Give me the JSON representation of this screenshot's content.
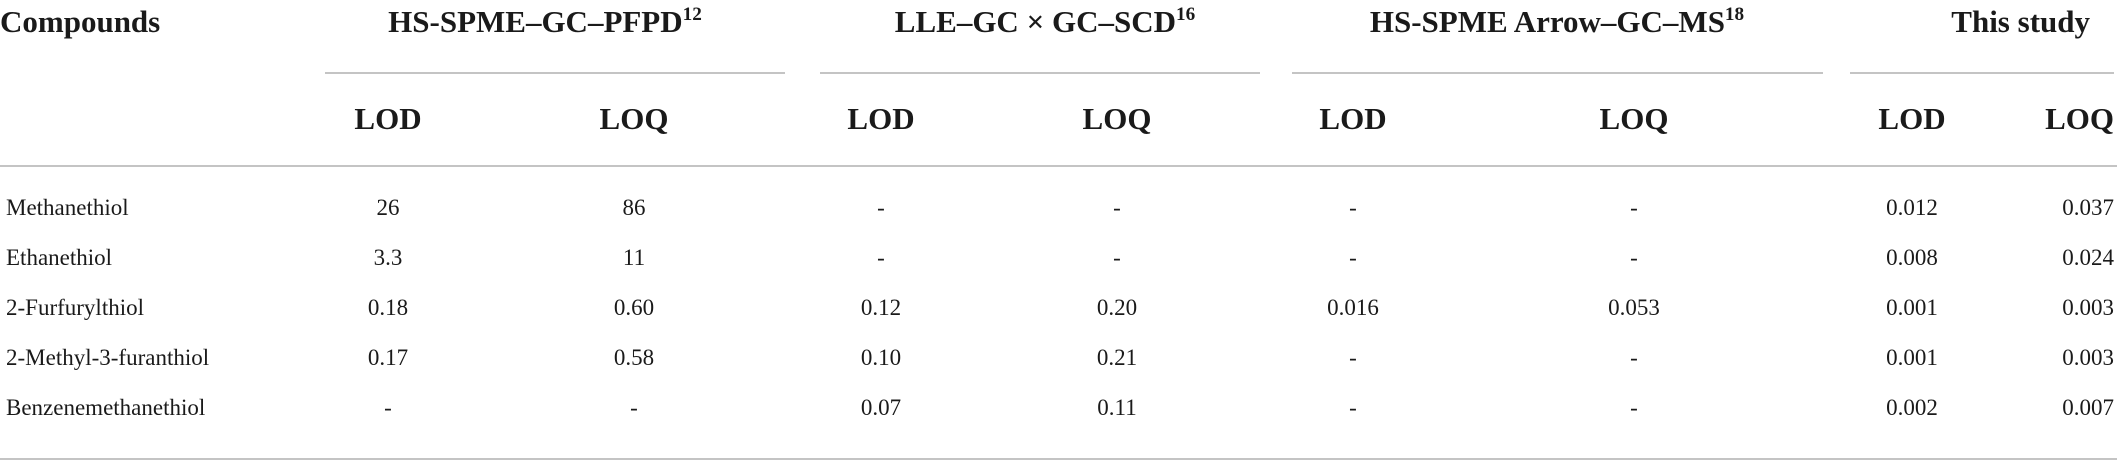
{
  "table": {
    "row_header": "Compounds",
    "groups": [
      {
        "label": "HS-SPME–GC–PFPD",
        "ref": "12"
      },
      {
        "label": "LLE–GC × GC–SCD",
        "ref": "16"
      },
      {
        "label": "HS-SPME Arrow–GC–MS",
        "ref": "18"
      },
      {
        "label": "This study",
        "ref": ""
      }
    ],
    "subheaders": [
      "LOD",
      "LOQ",
      "LOD",
      "LOQ",
      "LOD",
      "LOQ",
      "LOD",
      "LOQ"
    ],
    "rows": [
      {
        "compound": "Methanethiol",
        "values": [
          "26",
          "86",
          "-",
          "-",
          "-",
          "-",
          "0.012",
          "0.037"
        ]
      },
      {
        "compound": "Ethanethiol",
        "values": [
          "3.3",
          "11",
          "-",
          "-",
          "-",
          "-",
          "0.008",
          "0.024"
        ]
      },
      {
        "compound": "2-Furfurylthiol",
        "values": [
          "0.18",
          "0.60",
          "0.12",
          "0.20",
          "0.016",
          "0.053",
          "0.001",
          "0.003"
        ]
      },
      {
        "compound": "2-Methyl-3-furanthiol",
        "values": [
          "0.17",
          "0.58",
          "0.10",
          "0.21",
          "-",
          "-",
          "0.001",
          "0.003"
        ]
      },
      {
        "compound": "Benzenemethanethiol",
        "values": [
          "-",
          "-",
          "0.07",
          "0.11",
          "-",
          "-",
          "0.002",
          "0.007"
        ]
      }
    ]
  }
}
